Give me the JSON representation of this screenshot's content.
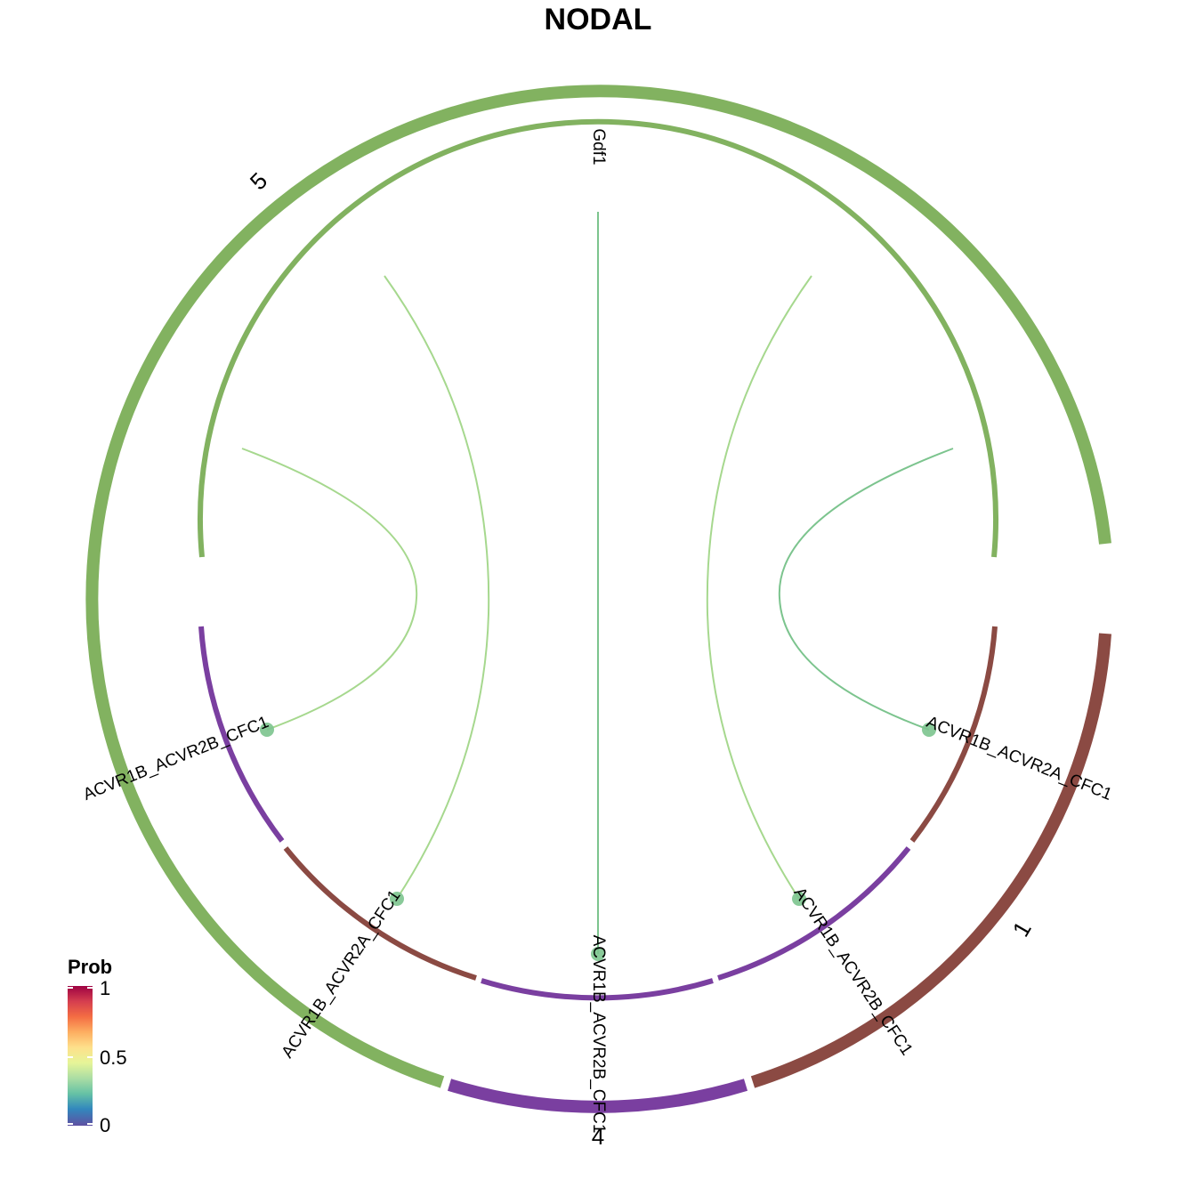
{
  "title": "NODAL",
  "colors": {
    "group_5": "#82B260",
    "group_1": "#8B4A43",
    "group_4": "#7A3FA0",
    "link": "#7CC48E",
    "link_light": "#A6D88E"
  },
  "groups": [
    {
      "id": "g5",
      "label": "5",
      "color": "#82B260"
    },
    {
      "id": "g1",
      "label": "1",
      "color": "#8B4A43"
    },
    {
      "id": "g4",
      "label": "4",
      "color": "#7A3FA0"
    }
  ],
  "sectors": [
    {
      "id": "gdf1",
      "label": "Gdf1",
      "group": "g5"
    },
    {
      "id": "rec_a",
      "label": "ACVR1B_ACVR2A_CFC1",
      "group": "g1"
    },
    {
      "id": "rec_b",
      "label": "ACVR1B_ACVR2B_CFC1",
      "group": "g4"
    },
    {
      "id": "rec_c",
      "label": "ACVR1B_ACVR2A_CFC1",
      "group": "g1"
    },
    {
      "id": "rec_d",
      "label": "ACVR1B_ACVR2B_CFC1",
      "group": "g4"
    },
    {
      "id": "rec_e",
      "label": "ACVR1B_ACVR2B_CFC1",
      "group": "g4"
    }
  ],
  "links": [
    {
      "from": "gdf1",
      "to": "rec_a",
      "prob": 0.35
    },
    {
      "from": "gdf1",
      "to": "rec_b",
      "prob": 0.4
    },
    {
      "from": "gdf1",
      "to": "rec_c",
      "prob": 0.4
    },
    {
      "from": "gdf1",
      "to": "rec_d",
      "prob": 0.35
    },
    {
      "from": "gdf1",
      "to": "rec_e",
      "prob": 0.45
    }
  ],
  "legend": {
    "title": "Prob",
    "ticks": [
      "1",
      "0.5",
      "0"
    ],
    "colors": [
      "#9E0142",
      "#D53E4F",
      "#F46D43",
      "#FDAE61",
      "#FEE08B",
      "#E6F598",
      "#ABDDA4",
      "#66C2A5",
      "#3288BD",
      "#5E4FA2"
    ]
  }
}
